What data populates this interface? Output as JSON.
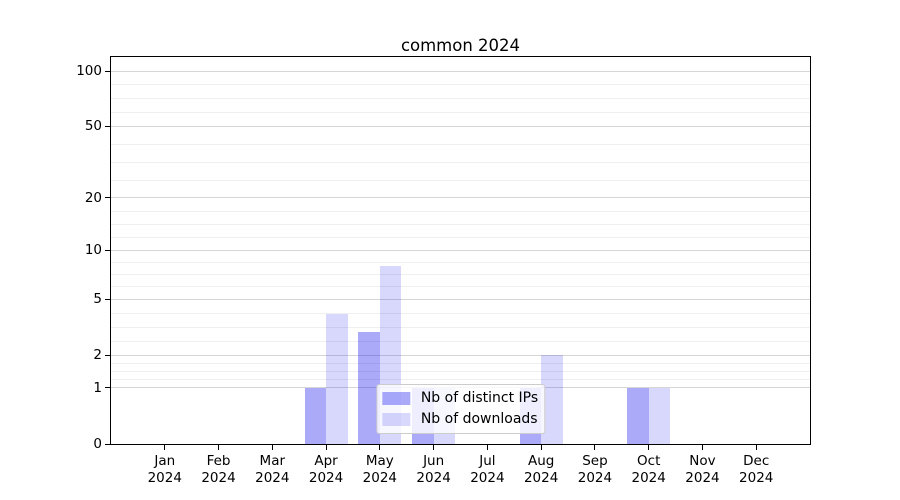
{
  "chart_data": {
    "type": "bar",
    "title": "common 2024",
    "months": [
      "Jan",
      "Feb",
      "Mar",
      "Apr",
      "May",
      "Jun",
      "Jul",
      "Aug",
      "Sep",
      "Oct",
      "Nov",
      "Dec"
    ],
    "year": "2024",
    "series": [
      {
        "name": "Nb of distinct IPs",
        "color": "rgba(8,8,238,0.345)",
        "values": [
          0,
          0,
          0,
          1,
          3,
          1,
          0,
          1,
          0,
          1,
          0,
          0
        ]
      },
      {
        "name": "Nb of downloads",
        "color": "rgba(8,8,238,0.155)",
        "values": [
          0,
          0,
          0,
          4,
          8,
          1,
          0,
          2,
          0,
          1,
          0,
          0
        ]
      }
    ],
    "y_ticks": [
      0,
      1,
      2,
      5,
      10,
      20,
      50,
      100
    ],
    "y_scale": "log1p",
    "ylim": [
      0,
      119
    ],
    "grid": "major+minor",
    "legend_position": "lower center",
    "colors": {
      "grid_major": "#d6d6d6",
      "grid_minor": "#efefef",
      "spine": "#000000",
      "text": "#000000",
      "background": "#ffffff"
    }
  }
}
